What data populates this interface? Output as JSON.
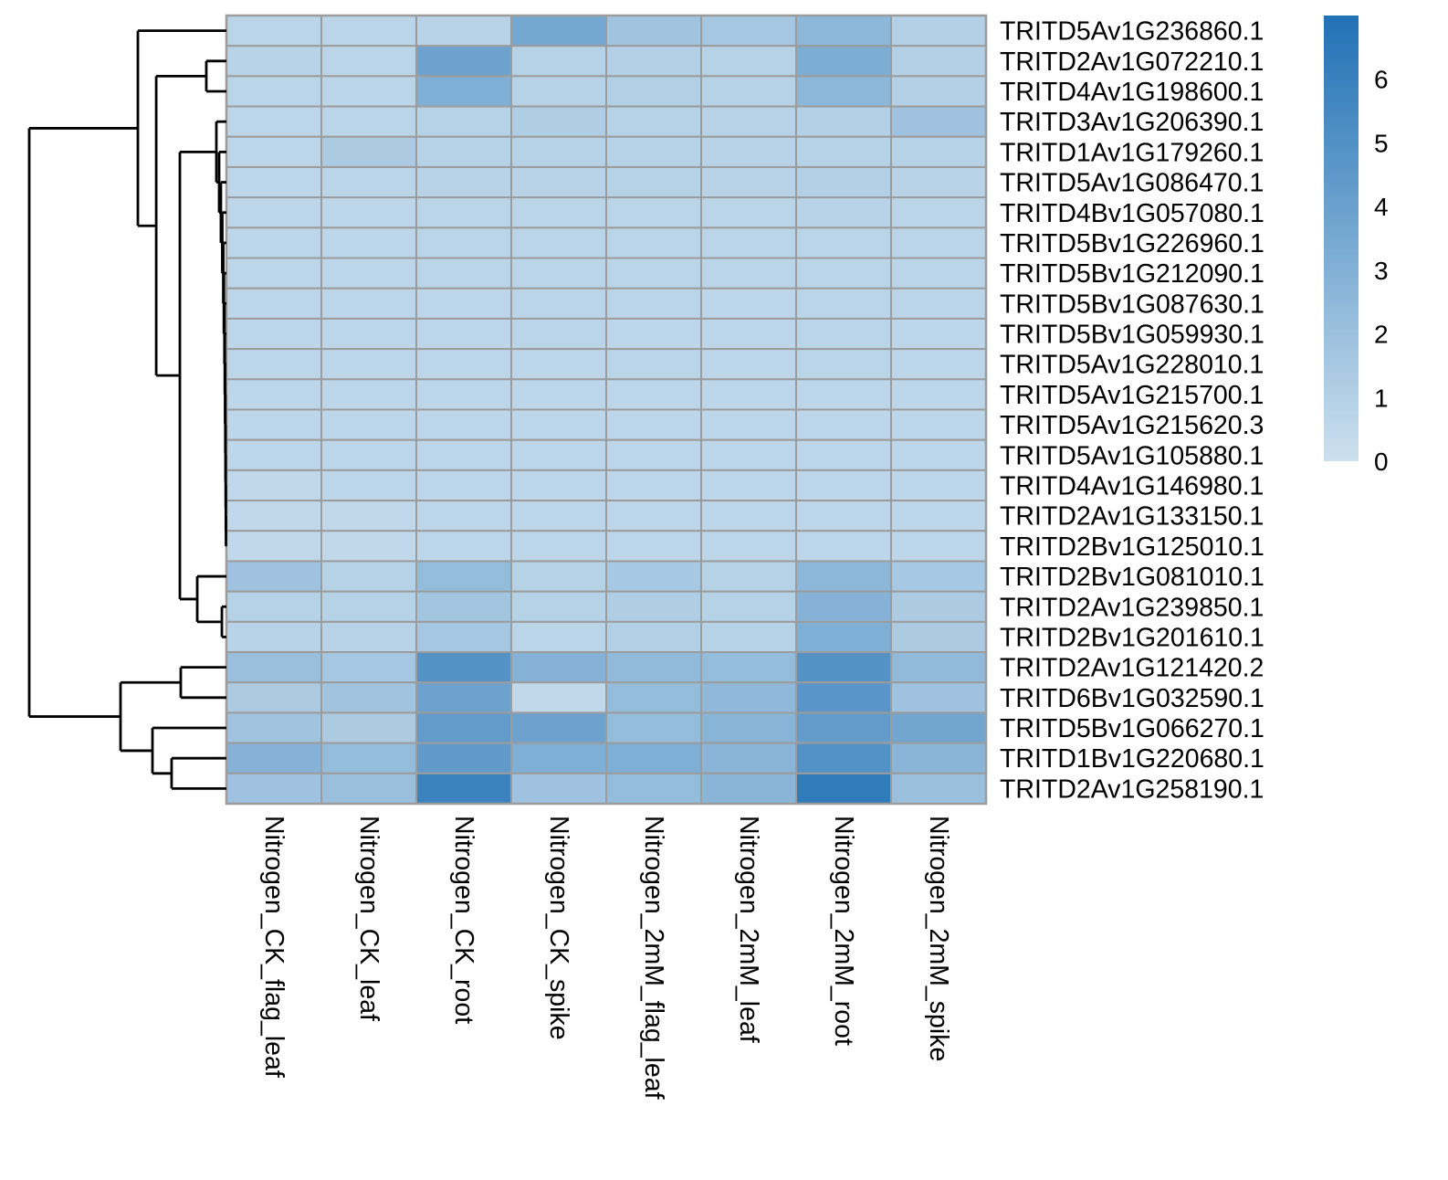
{
  "chart_data": {
    "type": "heatmap",
    "title": "",
    "legend_position": "right",
    "grid": true,
    "grid_color": "#9c9c9c",
    "dendrogram_color": "#000000",
    "columns": [
      "Nitrogen_CK_flag_leaf",
      "Nitrogen_CK_leaf",
      "Nitrogen_CK_root",
      "Nitrogen_CK_spike",
      "Nitrogen_2mM_flag_leaf",
      "Nitrogen_2mM_leaf",
      "Nitrogen_2mM_root",
      "Nitrogen_2mM_spike"
    ],
    "rows": [
      "TRITD5Av1G236860.1",
      "TRITD2Av1G072210.1",
      "TRITD4Av1G198600.1",
      "TRITD3Av1G206390.1",
      "TRITD1Av1G179260.1",
      "TRITD5Av1G086470.1",
      "TRITD4Bv1G057080.1",
      "TRITD5Bv1G226960.1",
      "TRITD5Bv1G212090.1",
      "TRITD5Bv1G087630.1",
      "TRITD5Bv1G059930.1",
      "TRITD5Av1G228010.1",
      "TRITD5Av1G215700.1",
      "TRITD5Av1G215620.3",
      "TRITD5Av1G105880.1",
      "TRITD4Av1G146980.1",
      "TRITD2Av1G133150.1",
      "TRITD2Bv1G125010.1",
      "TRITD2Bv1G081010.1",
      "TRITD2Av1G239850.1",
      "TRITD2Bv1G201610.1",
      "TRITD2Av1G121420.2",
      "TRITD6Bv1G032590.1",
      "TRITD5Bv1G066270.1",
      "TRITD1Bv1G220680.1",
      "TRITD2Av1G258190.1"
    ],
    "values": [
      [
        0.7,
        0.7,
        0.8,
        3.6,
        1.8,
        1.6,
        2.6,
        1.0
      ],
      [
        0.8,
        0.7,
        3.9,
        0.9,
        1.0,
        0.9,
        3.2,
        1.0
      ],
      [
        0.7,
        0.7,
        3.1,
        0.9,
        1.1,
        0.9,
        2.6,
        1.0
      ],
      [
        0.6,
        0.7,
        0.9,
        1.2,
        0.9,
        0.8,
        1.0,
        1.9
      ],
      [
        0.6,
        1.3,
        0.9,
        0.9,
        0.9,
        0.8,
        0.9,
        0.9
      ],
      [
        0.6,
        0.7,
        0.8,
        0.8,
        0.9,
        0.8,
        1.0,
        0.8
      ],
      [
        0.6,
        0.6,
        0.7,
        0.7,
        0.7,
        0.7,
        0.8,
        0.7
      ],
      [
        0.6,
        0.6,
        0.7,
        0.7,
        0.7,
        0.7,
        0.7,
        0.7
      ],
      [
        0.6,
        0.6,
        0.7,
        0.7,
        0.7,
        0.7,
        0.7,
        0.7
      ],
      [
        0.6,
        0.6,
        0.6,
        0.7,
        0.7,
        0.6,
        0.7,
        0.7
      ],
      [
        0.6,
        0.6,
        0.6,
        0.7,
        0.6,
        0.6,
        0.7,
        0.6
      ],
      [
        0.6,
        0.6,
        0.6,
        0.6,
        0.7,
        0.6,
        0.7,
        0.6
      ],
      [
        0.6,
        0.6,
        0.6,
        0.6,
        0.6,
        0.6,
        0.6,
        0.6
      ],
      [
        0.6,
        0.6,
        0.6,
        0.6,
        0.6,
        0.6,
        0.6,
        0.6
      ],
      [
        0.6,
        0.6,
        0.6,
        0.6,
        0.6,
        0.6,
        0.6,
        0.6
      ],
      [
        0.5,
        0.6,
        0.6,
        0.6,
        0.6,
        0.6,
        0.6,
        0.6
      ],
      [
        0.5,
        0.5,
        0.6,
        0.6,
        0.6,
        0.6,
        0.6,
        0.6
      ],
      [
        0.5,
        0.5,
        0.6,
        0.6,
        0.6,
        0.6,
        0.6,
        0.6
      ],
      [
        1.9,
        0.9,
        2.3,
        0.9,
        1.5,
        0.9,
        2.6,
        1.5
      ],
      [
        0.9,
        0.9,
        1.7,
        0.9,
        1.2,
        0.9,
        2.9,
        1.3
      ],
      [
        0.8,
        0.8,
        1.6,
        0.7,
        1.1,
        0.9,
        3.1,
        1.3
      ],
      [
        2.1,
        1.6,
        4.9,
        2.9,
        2.4,
        2.3,
        4.9,
        2.4
      ],
      [
        1.3,
        1.8,
        3.9,
        0.5,
        2.3,
        2.5,
        4.7,
        1.9
      ],
      [
        1.8,
        1.3,
        4.3,
        3.9,
        2.3,
        2.8,
        4.3,
        3.7
      ],
      [
        2.9,
        2.3,
        4.4,
        3.1,
        3.1,
        2.7,
        5.0,
        2.7
      ],
      [
        1.9,
        2.1,
        5.9,
        1.9,
        2.3,
        2.7,
        6.4,
        2.0
      ]
    ],
    "color_scale": {
      "min": 0,
      "max": 7,
      "min_color": "#cce0ee",
      "max_color": "#2171b5",
      "legend_ticks": [
        "0",
        "1",
        "2",
        "3",
        "4",
        "5",
        "6"
      ]
    },
    "row_dendrogram": {
      "h": 1.0,
      "c": [
        {
          "h": 0.449,
          "c": [
            {
              "leaf": 0
            },
            {
              "h": 0.356,
              "c": [
                {
                  "h": 0.102,
                  "c": [
                    {
                      "leaf": 1
                    },
                    {
                      "leaf": 2
                    }
                  ]
                },
                {
                  "h": 0.236,
                  "c": [
                    {
                      "h": 0.051,
                      "c": [
                        {
                          "leaf": 3
                        },
                        {
                          "h": 0.037,
                          "c": [
                            {
                              "leaf": 4
                            },
                            {
                              "h": 0.028,
                              "c": [
                                {
                                  "leaf": 5
                                },
                                {
                                  "h": 0.021,
                                  "c": [
                                    {
                                      "leaf": 6
                                    },
                                    {
                                      "h": 0.016,
                                      "c": [
                                        {
                                          "leaf": 7
                                        },
                                        {
                                          "h": 0.013,
                                          "c": [
                                            {
                                              "leaf": 8
                                            },
                                            {
                                              "h": 0.01,
                                              "c": [
                                                {
                                                  "leaf": 9
                                                },
                                                {
                                                  "h": 0.0083,
                                                  "c": [
                                                    {
                                                      "leaf": 10
                                                    },
                                                    {
                                                      "h": 0.0069,
                                                      "c": [
                                                        {
                                                          "leaf": 11
                                                        },
                                                        {
                                                          "h": 0.0056,
                                                          "c": [
                                                            {
                                                              "leaf": 12
                                                            },
                                                            {
                                                              "h": 0.0046,
                                                              "c": [
                                                                {
                                                                  "leaf": 13
                                                                },
                                                                {
                                                                  "h": 0.0037,
                                                                  "c": [
                                                                    {
                                                                      "leaf": 14
                                                                    },
                                                                    {
                                                                      "h": 0.003,
                                                                      "c": [
                                                                        {
                                                                          "leaf": 15
                                                                        },
                                                                        {
                                                                          "h": 0.0023,
                                                                          "c": [
                                                                            {
                                                                              "leaf": 16
                                                                            },
                                                                            {
                                                                              "leaf": 17
                                                                            }
                                                                          ]
                                                                        }
                                                                      ]
                                                                    }
                                                                  ]
                                                                }
                                                              ]
                                                            }
                                                          ]
                                                        }
                                                      ]
                                                    }
                                                  ]
                                                }
                                              ]
                                            }
                                          ]
                                        }
                                      ]
                                    }
                                  ]
                                }
                              ]
                            }
                          ]
                        }
                      ]
                    },
                    {
                      "h": 0.148,
                      "c": [
                        {
                          "leaf": 18
                        },
                        {
                          "h": 0.023,
                          "c": [
                            {
                              "leaf": 19
                            },
                            {
                              "leaf": 20
                            }
                          ]
                        }
                      ]
                    }
                  ]
                }
              ]
            }
          ]
        },
        {
          "h": 0.537,
          "c": [
            {
              "h": 0.2315,
              "c": [
                {
                  "leaf": 21
                },
                {
                  "leaf": 22
                }
              ]
            },
            {
              "h": 0.375,
              "c": [
                {
                  "leaf": 23
                },
                {
                  "h": 0.278,
                  "c": [
                    {
                      "leaf": 24
                    },
                    {
                      "leaf": 25
                    }
                  ]
                }
              ]
            }
          ]
        }
      ]
    }
  }
}
